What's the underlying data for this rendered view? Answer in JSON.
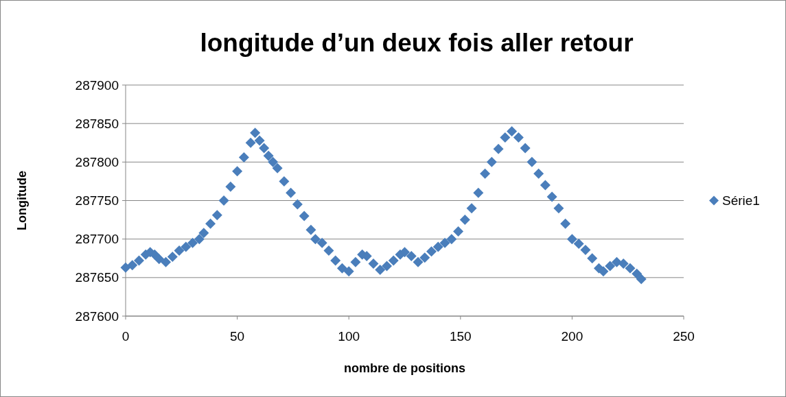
{
  "chart_data": {
    "type": "scatter",
    "title": "longitude d’un deux fois aller retour",
    "xlabel": "nombre de positions",
    "ylabel": "Longitude",
    "xlim": [
      0,
      250
    ],
    "xticks": [
      0,
      50,
      100,
      150,
      200,
      250
    ],
    "ylim": [
      287600,
      287900
    ],
    "yticks": [
      287600,
      287650,
      287700,
      287750,
      287800,
      287850,
      287900
    ],
    "grid": "y",
    "legend": "right",
    "marker": "diamond",
    "series": [
      {
        "name": "Série1",
        "color": "#4a7ebb",
        "x": [
          0,
          3,
          6,
          9,
          11,
          13,
          15,
          18,
          21,
          24,
          27,
          30,
          33,
          35,
          38,
          41,
          44,
          47,
          50,
          53,
          56,
          58,
          60,
          62,
          64,
          66,
          68,
          71,
          74,
          77,
          80,
          83,
          85,
          88,
          91,
          94,
          97,
          100,
          103,
          106,
          108,
          111,
          114,
          117,
          120,
          123,
          125,
          128,
          131,
          134,
          137,
          140,
          143,
          146,
          149,
          152,
          155,
          158,
          161,
          164,
          167,
          170,
          173,
          176,
          179,
          182,
          185,
          188,
          191,
          194,
          197,
          200,
          203,
          206,
          209,
          212,
          214,
          217,
          220,
          223,
          226,
          229,
          231
        ],
        "values": [
          287663,
          287666,
          287672,
          287680,
          287683,
          287680,
          287674,
          287670,
          287677,
          287685,
          287690,
          287695,
          287700,
          287708,
          287720,
          287731,
          287750,
          287768,
          287788,
          287806,
          287825,
          287838,
          287828,
          287818,
          287808,
          287800,
          287792,
          287775,
          287760,
          287745,
          287730,
          287712,
          287700,
          287695,
          287685,
          287672,
          287662,
          287658,
          287670,
          287680,
          287678,
          287668,
          287660,
          287665,
          287672,
          287680,
          287683,
          287678,
          287670,
          287676,
          287684,
          287690,
          287695,
          287700,
          287710,
          287725,
          287740,
          287760,
          287785,
          287800,
          287817,
          287832,
          287840,
          287832,
          287818,
          287800,
          287785,
          287770,
          287755,
          287740,
          287720,
          287700,
          287694,
          287686,
          287675,
          287662,
          287658,
          287665,
          287670,
          287668,
          287662,
          287655,
          287648
        ]
      }
    ]
  }
}
